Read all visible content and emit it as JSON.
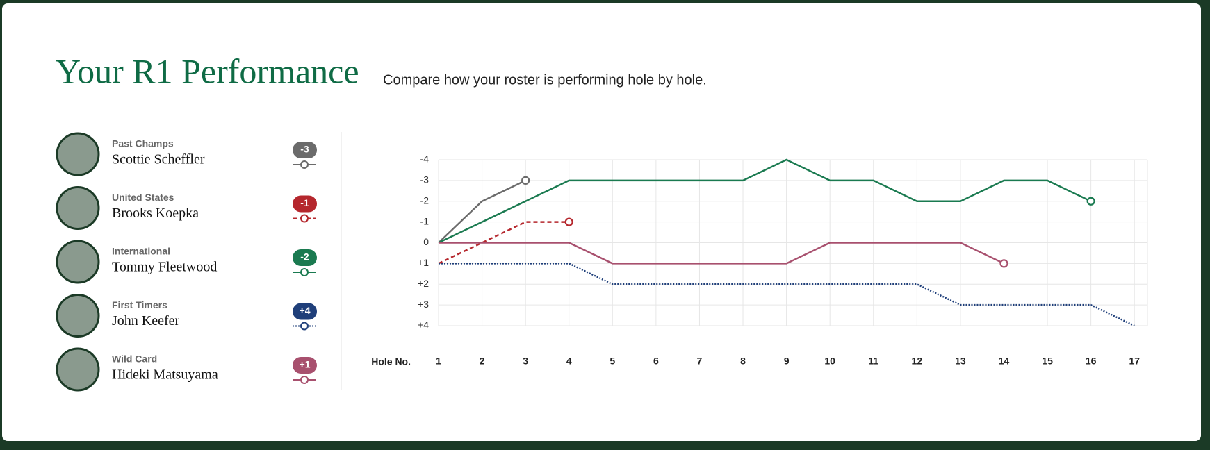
{
  "header": {
    "title": "Your R1 Performance",
    "subtitle": "Compare how your roster is performing hole by hole."
  },
  "chart_data": {
    "type": "line",
    "x_label": "Hole No.",
    "x": [
      1,
      2,
      3,
      4,
      5,
      6,
      7,
      8,
      9,
      10,
      11,
      12,
      13,
      14,
      15,
      16,
      17
    ],
    "xlim": [
      1,
      17.3
    ],
    "xticks": [
      1,
      2,
      3,
      4,
      5,
      6,
      7,
      8,
      9,
      10,
      11,
      12,
      13,
      14,
      15,
      16,
      17
    ],
    "ylim": [
      -4,
      4
    ],
    "y_inverted": true,
    "yticks": [
      -4,
      -3,
      -2,
      -1,
      0,
      {
        "value": 1,
        "label": "+1"
      },
      {
        "value": 2,
        "label": "+2"
      },
      {
        "value": 3,
        "label": "+3"
      },
      {
        "value": 4,
        "label": "+4"
      }
    ],
    "grid": true,
    "series": [
      {
        "name": "Scottie Scheffler",
        "group": "Past Champs",
        "score_label": "-3",
        "color": "#6b6b6b",
        "dash": "solid",
        "values": [
          0,
          -2,
          -3,
          null,
          null,
          null,
          null,
          null,
          null,
          null,
          null,
          null,
          null,
          null,
          null,
          null,
          null
        ]
      },
      {
        "name": "Brooks Koepka",
        "group": "United States",
        "score_label": "-1",
        "color": "#b5272d",
        "dash": "dashed",
        "values": [
          1,
          0,
          -1,
          -1,
          null,
          null,
          null,
          null,
          null,
          null,
          null,
          null,
          null,
          null,
          null,
          null,
          null
        ]
      },
      {
        "name": "Tommy Fleetwood",
        "group": "International",
        "score_label": "-2",
        "color": "#1a7a50",
        "dash": "solid",
        "values": [
          0,
          -1,
          -2,
          -3,
          -3,
          -3,
          -3,
          -3,
          -4,
          -3,
          -3,
          -2,
          -2,
          -3,
          -3,
          -2,
          null
        ]
      },
      {
        "name": "John Keefer",
        "group": "First Timers",
        "score_label": "+4",
        "color": "#1f3f7a",
        "dash": "dotted",
        "values": [
          1,
          1,
          1,
          1,
          2,
          2,
          2,
          2,
          2,
          2,
          2,
          2,
          3,
          3,
          3,
          3,
          4
        ]
      },
      {
        "name": "Hideki Matsuyama",
        "group": "Wild Card",
        "score_label": "+1",
        "color": "#a8506e",
        "dash": "solid",
        "values": [
          0,
          0,
          0,
          0,
          1,
          1,
          1,
          1,
          1,
          0,
          0,
          0,
          0,
          1,
          null,
          null,
          null
        ]
      }
    ]
  }
}
